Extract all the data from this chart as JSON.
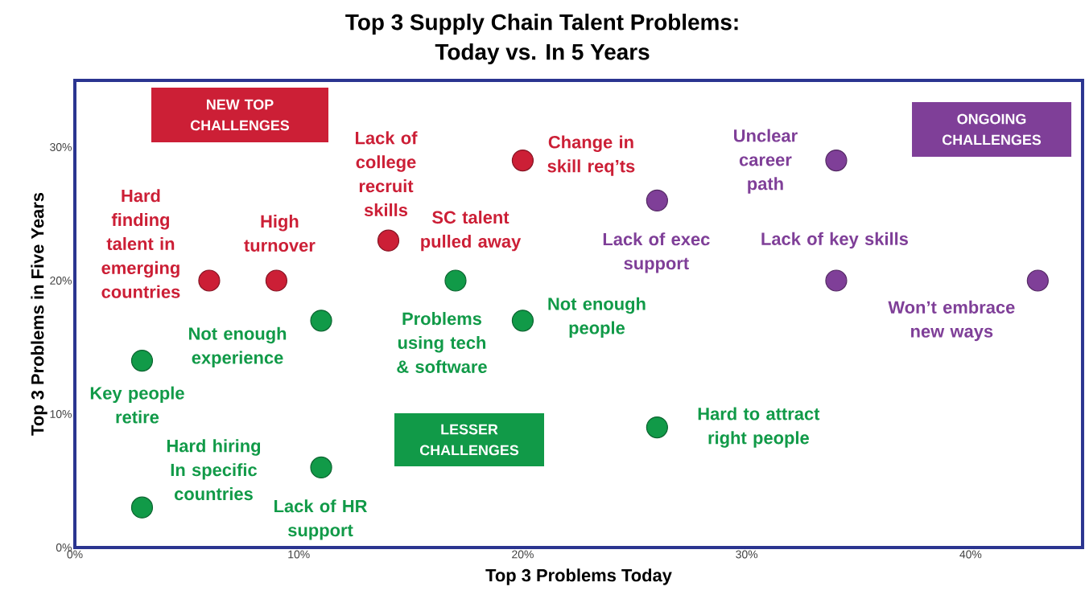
{
  "chart_data": {
    "type": "scatter",
    "title": "Top 3 Supply Chain Talent Problems:",
    "subtitle": "Today vs. In 5 Years",
    "xlabel": "Top 3 Problems Today",
    "ylabel": "Top 3 Problems in Five Years",
    "xlim": [
      0,
      45
    ],
    "ylim": [
      0,
      35
    ],
    "xticks": [
      {
        "value": 0,
        "label": "0%"
      },
      {
        "value": 10,
        "label": "10%"
      },
      {
        "value": 20,
        "label": "20%"
      },
      {
        "value": 30,
        "label": "30%"
      },
      {
        "value": 40,
        "label": "40%"
      }
    ],
    "yticks": [
      {
        "value": 0,
        "label": "0%"
      },
      {
        "value": 10,
        "label": "10%"
      },
      {
        "value": 20,
        "label": "20%"
      },
      {
        "value": 30,
        "label": "30%"
      }
    ],
    "marker": "circle",
    "grid": false,
    "series": [
      {
        "color": "#cc1f36",
        "x": [
          6,
          9,
          14,
          20
        ],
        "values": [
          20,
          20,
          23,
          29
        ]
      },
      {
        "color": "#119a48",
        "x": [
          3,
          11,
          3,
          11,
          17,
          20,
          26
        ],
        "values": [
          14,
          17,
          3,
          6,
          20,
          17,
          9
        ]
      },
      {
        "color": "#7f3f98",
        "x": [
          26,
          34,
          34,
          43
        ],
        "values": [
          26,
          29,
          20,
          20
        ]
      }
    ],
    "annotations": [
      {
        "text": "Hard finding talent in emerging countries",
        "x": 6,
        "y": 20
      },
      {
        "text": "High turnover",
        "x": 9,
        "y": 20
      },
      {
        "text": "Lack of college recruit skills",
        "x": 14,
        "y": 23
      },
      {
        "text": "Change in skill req’ts",
        "x": 20,
        "y": 29
      },
      {
        "text": "Key people retire",
        "x": 3,
        "y": 14
      },
      {
        "text": "Not enough experience",
        "x": 11,
        "y": 17
      },
      {
        "text": "Hard hiring In specific countries",
        "x": 3,
        "y": 3
      },
      {
        "text": "Lack of HR support",
        "x": 11,
        "y": 6
      },
      {
        "text": "Problems using tech & software",
        "x": 17,
        "y": 20
      },
      {
        "text": "Not enough people",
        "x": 20,
        "y": 17
      },
      {
        "text": "Hard to attract right people",
        "x": 26,
        "y": 9
      },
      {
        "text": "SC talent pulled away",
        "x": 14,
        "y": 23
      },
      {
        "text": "Lack of exec support",
        "x": 26,
        "y": 26
      },
      {
        "text": "Unclear career path",
        "x": 34,
        "y": 29
      },
      {
        "text": "Lack of key skills",
        "x": 34,
        "y": 20
      },
      {
        "text": "Won’t embrace new ways",
        "x": 43,
        "y": 20
      },
      "NEW TOP CHALLENGES",
      "ONGOING CHALLENGES",
      "LESSER CHALLENGES"
    ]
  }
}
